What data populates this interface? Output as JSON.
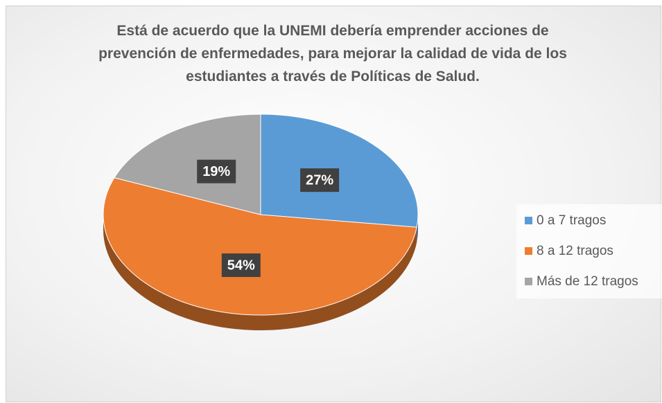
{
  "chart_data": {
    "type": "pie",
    "title": "Está de acuerdo que la UNEMI debería emprender acciones de prevención de enfermedades, para mejorar la calidad de vida de los estudiantes a través de Políticas de Salud.",
    "categories": [
      "0 a 7 tragos",
      "8 a 12 tragos",
      "Más de 12 tragos"
    ],
    "values": [
      27,
      54,
      19
    ],
    "value_labels": [
      "27%",
      "54%",
      "19%"
    ],
    "colors": [
      "#5b9bd5",
      "#ed7d31",
      "#a5a5a5"
    ],
    "legend": "right"
  }
}
